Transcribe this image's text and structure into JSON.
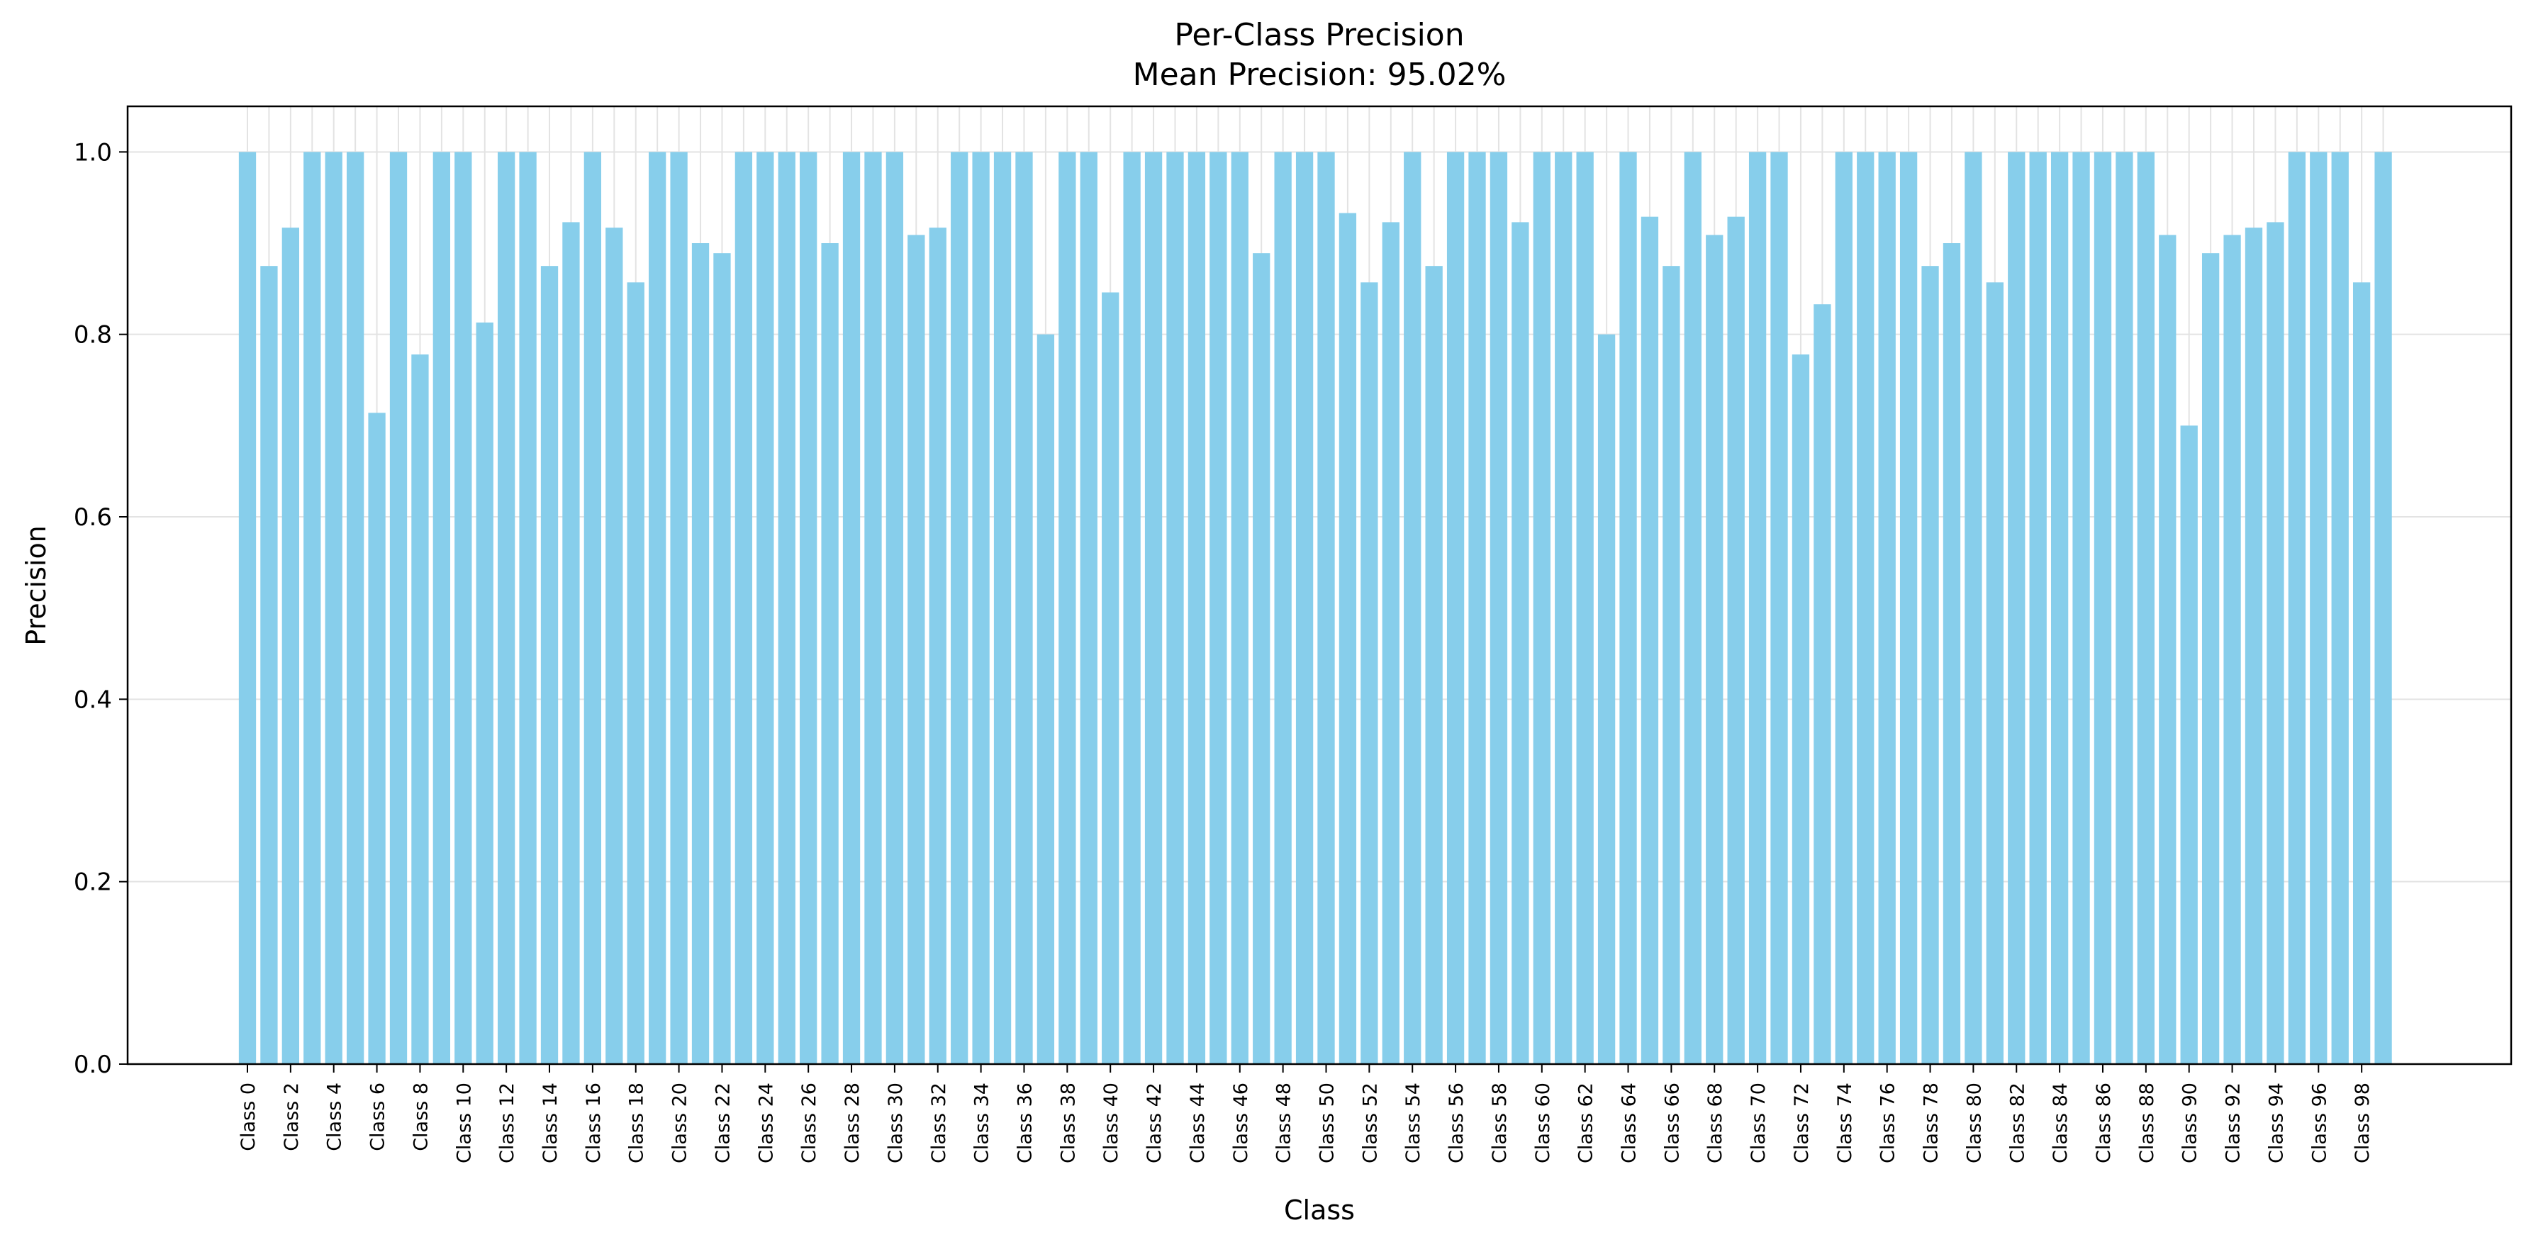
{
  "chart_data": {
    "type": "bar",
    "title": "Per-Class Precision",
    "subtitle": "Mean Precision: 95.02%",
    "xlabel": "Class",
    "ylabel": "Precision",
    "ylim": [
      0,
      1.05
    ],
    "yticks": [
      "0.0",
      "0.2",
      "0.4",
      "0.6",
      "0.8",
      "1.0"
    ],
    "grid": "on",
    "bar_color": "#87ceeb",
    "categories": [
      "Class 0",
      "Class 1",
      "Class 2",
      "Class 3",
      "Class 4",
      "Class 5",
      "Class 6",
      "Class 7",
      "Class 8",
      "Class 9",
      "Class 10",
      "Class 11",
      "Class 12",
      "Class 13",
      "Class 14",
      "Class 15",
      "Class 16",
      "Class 17",
      "Class 18",
      "Class 19",
      "Class 20",
      "Class 21",
      "Class 22",
      "Class 23",
      "Class 24",
      "Class 25",
      "Class 26",
      "Class 27",
      "Class 28",
      "Class 29",
      "Class 30",
      "Class 31",
      "Class 32",
      "Class 33",
      "Class 34",
      "Class 35",
      "Class 36",
      "Class 37",
      "Class 38",
      "Class 39",
      "Class 40",
      "Class 41",
      "Class 42",
      "Class 43",
      "Class 44",
      "Class 45",
      "Class 46",
      "Class 47",
      "Class 48",
      "Class 49",
      "Class 50",
      "Class 51",
      "Class 52",
      "Class 53",
      "Class 54",
      "Class 55",
      "Class 56",
      "Class 57",
      "Class 58",
      "Class 59",
      "Class 60",
      "Class 61",
      "Class 62",
      "Class 63",
      "Class 64",
      "Class 65",
      "Class 66",
      "Class 67",
      "Class 68",
      "Class 69",
      "Class 70",
      "Class 71",
      "Class 72",
      "Class 73",
      "Class 74",
      "Class 75",
      "Class 76",
      "Class 77",
      "Class 78",
      "Class 79",
      "Class 80",
      "Class 81",
      "Class 82",
      "Class 83",
      "Class 84",
      "Class 85",
      "Class 86",
      "Class 87",
      "Class 88",
      "Class 89",
      "Class 90",
      "Class 91",
      "Class 92",
      "Class 93",
      "Class 94",
      "Class 95",
      "Class 96",
      "Class 97",
      "Class 98",
      "Class 99"
    ],
    "xtick_labels": [
      "Class 0",
      "Class 2",
      "Class 4",
      "Class 6",
      "Class 8",
      "Class 10",
      "Class 12",
      "Class 14",
      "Class 16",
      "Class 18",
      "Class 20",
      "Class 22",
      "Class 24",
      "Class 26",
      "Class 28",
      "Class 30",
      "Class 32",
      "Class 34",
      "Class 36",
      "Class 38",
      "Class 40",
      "Class 42",
      "Class 44",
      "Class 46",
      "Class 48",
      "Class 50",
      "Class 52",
      "Class 54",
      "Class 56",
      "Class 58",
      "Class 60",
      "Class 62",
      "Class 64",
      "Class 66",
      "Class 68",
      "Class 70",
      "Class 72",
      "Class 74",
      "Class 76",
      "Class 78",
      "Class 80",
      "Class 82",
      "Class 84",
      "Class 86",
      "Class 88",
      "Class 90",
      "Class 92",
      "Class 94",
      "Class 96",
      "Class 98"
    ],
    "values": [
      1.0,
      0.875,
      0.917,
      1.0,
      1.0,
      1.0,
      0.714,
      1.0,
      0.778,
      1.0,
      1.0,
      0.813,
      1.0,
      1.0,
      0.875,
      0.923,
      1.0,
      0.917,
      0.857,
      1.0,
      1.0,
      0.9,
      0.889,
      1.0,
      1.0,
      1.0,
      1.0,
      0.9,
      1.0,
      1.0,
      1.0,
      0.909,
      0.917,
      1.0,
      1.0,
      1.0,
      1.0,
      0.8,
      1.0,
      1.0,
      0.846,
      1.0,
      1.0,
      1.0,
      1.0,
      1.0,
      1.0,
      0.889,
      1.0,
      1.0,
      1.0,
      0.933,
      0.857,
      0.923,
      1.0,
      0.875,
      1.0,
      1.0,
      1.0,
      0.923,
      1.0,
      1.0,
      1.0,
      0.8,
      1.0,
      0.929,
      0.875,
      1.0,
      0.909,
      0.929,
      1.0,
      1.0,
      0.778,
      0.833,
      1.0,
      1.0,
      1.0,
      1.0,
      0.875,
      0.9,
      1.0,
      0.857,
      1.0,
      1.0,
      1.0,
      1.0,
      1.0,
      1.0,
      1.0,
      0.909,
      0.7,
      0.889,
      0.909,
      0.917,
      0.923,
      1.0,
      1.0,
      1.0,
      0.857,
      1.0
    ]
  }
}
